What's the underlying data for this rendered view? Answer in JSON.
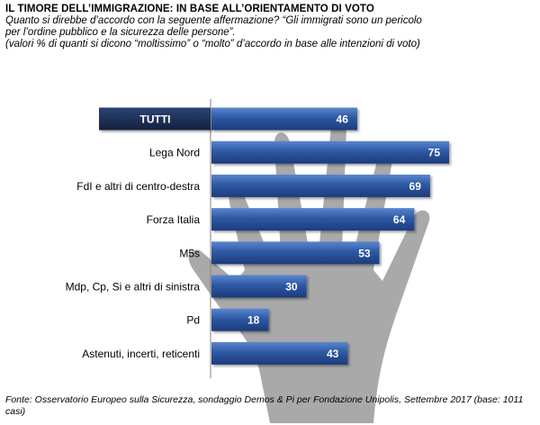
{
  "header": {
    "title": "IL TIMORE DELL’IMMIGRAZIONE: IN BASE ALL’ORIENTAMENTO DI VOTO",
    "subtitle": "Quanto si direbbe d’accordo con la seguente affermazione?  “Gli immigrati sono un pericolo\nper l’ordine pubblico e la sicurezza delle persone”.\n(valori % di quanti si dicono “moltissimo” o “molto” d’accordo in base alle intenzioni di voto)"
  },
  "chart_data": {
    "type": "bar",
    "orientation": "horizontal",
    "categories": [
      "TUTTI",
      "Lega Nord",
      "FdI e altri di centro-destra",
      "Forza Italia",
      "M5s",
      "Mdp, Cp, Si e altri di sinistra",
      "Pd",
      "Astenuti, incerti, reticenti"
    ],
    "values": [
      46,
      75,
      69,
      64,
      53,
      30,
      18,
      43
    ],
    "highlight_category": "TUTTI",
    "title": "",
    "xlabel": "",
    "ylabel": "",
    "xlim": [
      0,
      100
    ],
    "grid": false,
    "legend": "none",
    "colors": {
      "bar": "#2e58a4",
      "bar_light": "#4a78c4",
      "bar_dark": "#1a3a78",
      "highlight_label_bg": "#1b2e52",
      "value_text": "#ffffff",
      "label_text": "#000000",
      "background_hand": "#9a9a9a"
    }
  },
  "footer": {
    "source": "Fonte: Osservatorio Europeo sulla Sicurezza, sondaggio Demos & Pi per Fondazione Unipolis, Settembre 2017 (base: 1011 casi)"
  }
}
